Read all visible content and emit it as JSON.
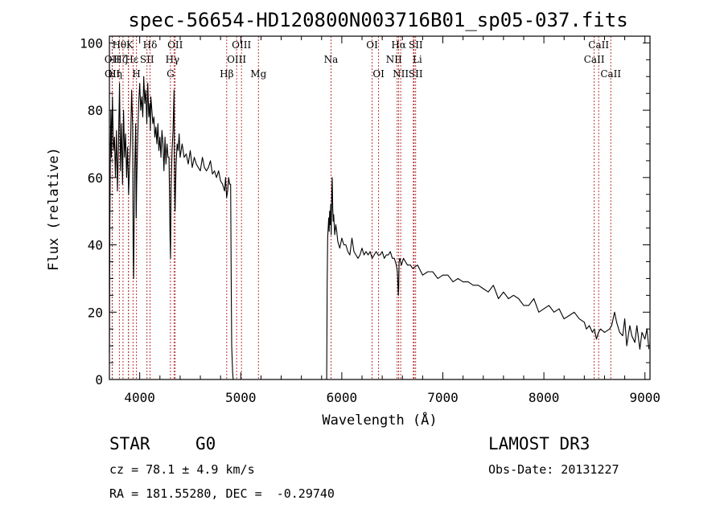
{
  "chart_data": {
    "type": "line",
    "title": "spec-56654-HD120800N003716B01_sp05-037.fits",
    "xlabel": "Wavelength (Å)",
    "ylabel": "Flux (relative)",
    "xlim": [
      3700,
      9050
    ],
    "ylim": [
      0,
      102
    ],
    "xticks": [
      4000,
      5000,
      6000,
      7000,
      8000,
      9000
    ],
    "yticks": [
      0,
      20,
      40,
      60,
      80,
      100
    ],
    "grid": false,
    "series": [
      {
        "color": "#000000",
        "segments": [
          {
            "x": [
              3700,
              3705,
              3710,
              3715,
              3720,
              3725,
              3730,
              3740,
              3750,
              3760,
              3770,
              3780,
              3790,
              3800,
              3810,
              3820,
              3830,
              3840,
              3850,
              3860,
              3870,
              3880,
              3890,
              3900,
              3910,
              3920,
              3930,
              3935,
              3940,
              3950,
              3960,
              3965,
              3970,
              3980,
              3990,
              4000,
              4010,
              4020,
              4030,
              4040,
              4050,
              4060,
              4070,
              4080,
              4090,
              4100,
              4105,
              4110,
              4120,
              4130,
              4140,
              4150,
              4160,
              4170,
              4180,
              4190,
              4200,
              4210,
              4220,
              4230,
              4240,
              4250,
              4260,
              4270,
              4280,
              4290,
              4300,
              4305,
              4310,
              4320,
              4330,
              4340,
              4345,
              4350,
              4360,
              4370,
              4380,
              4390,
              4400,
              4420,
              4440,
              4460,
              4480,
              4500,
              4520,
              4540,
              4560,
              4580,
              4600,
              4620,
              4640,
              4660,
              4680,
              4700,
              4720,
              4740,
              4760,
              4780,
              4800,
              4820,
              4840,
              4850,
              4860,
              4870,
              4880,
              4890,
              4900,
              4905,
              4910,
              4920,
              4925
            ],
            "y": [
              8,
              48,
              70,
              80,
              66,
              75,
              84,
              68,
              72,
              60,
              74,
              56,
              70,
              88,
              62,
              76,
              58,
              80,
              66,
              73,
              60,
              69,
              55,
              64,
              71,
              86,
              75,
              40,
              30,
              62,
              76,
              48,
              58,
              72,
              82,
              88,
              80,
              84,
              78,
              90,
              82,
              86,
              76,
              88,
              78,
              82,
              74,
              84,
              80,
              76,
              78,
              72,
              75,
              70,
              76,
              68,
              72,
              66,
              74,
              70,
              62,
              72,
              64,
              70,
              66,
              66,
              42,
              36,
              56,
              68,
              74,
              86,
              58,
              50,
              64,
              70,
              68,
              73,
              66,
              70,
              66,
              67,
              64,
              68,
              63,
              66,
              64,
              63,
              62,
              66,
              63,
              62,
              63,
              65,
              61,
              62,
              60,
              62,
              59,
              58,
              56,
              60,
              54,
              56,
              60,
              58,
              58,
              30,
              10,
              2,
              0
            ]
          },
          {
            "x": [
              5850,
              5855,
              5860,
              5870,
              5875,
              5880,
              5885,
              5890,
              5895,
              5900,
              5905,
              5910,
              5915,
              5920,
              5930,
              5940,
              5950,
              5960,
              5980,
              6000,
              6020,
              6040,
              6060,
              6080,
              6100,
              6120,
              6140,
              6160,
              6180,
              6200,
              6220,
              6240,
              6260,
              6280,
              6300,
              6320,
              6340,
              6360,
              6380,
              6400,
              6420,
              6440,
              6460,
              6480,
              6500,
              6520,
              6540,
              6550,
              6560,
              6563,
              6567,
              6575,
              6590,
              6610,
              6630,
              6650,
              6680,
              6700,
              6750,
              6800,
              6850,
              6900,
              6950,
              7000,
              7050,
              7100,
              7150,
              7200,
              7250,
              7300,
              7350,
              7400,
              7450,
              7500,
              7550,
              7600,
              7650,
              7700,
              7750,
              7800,
              7850,
              7900,
              7950,
              8000,
              8050,
              8100,
              8150,
              8200,
              8250,
              8300,
              8350,
              8400,
              8420,
              8450,
              8480,
              8500,
              8520,
              8540,
              8560,
              8600,
              8650,
              8670,
              8700,
              8720,
              8750,
              8780,
              8800,
              8820,
              8850,
              8870,
              8900,
              8920,
              8950,
              8970,
              9000,
              9020,
              9040
            ],
            "y": [
              0,
              28,
              42,
              48,
              44,
              50,
              46,
              52,
              43,
              54,
              60,
              51,
              47,
              49,
              43,
              46,
              44,
              41,
              39,
              42,
              40,
              40,
              38,
              37,
              42,
              38,
              37,
              36,
              37,
              39,
              37,
              38,
              37,
              38,
              36,
              37,
              38,
              37,
              37,
              38,
              36,
              37,
              37,
              38,
              36,
              36,
              34,
              32,
              25,
              27,
              35,
              36,
              34,
              36,
              35,
              34,
              34,
              33,
              34,
              31,
              32,
              32,
              30,
              31,
              31,
              29,
              30,
              29,
              29,
              28,
              28,
              27,
              26,
              28,
              24,
              26,
              24,
              25,
              24,
              22,
              22,
              24,
              20,
              21,
              22,
              20,
              21,
              18,
              19,
              20,
              18,
              17,
              15,
              16,
              14,
              15,
              12,
              14,
              15,
              14,
              15,
              16,
              20,
              17,
              14,
              13,
              18,
              10,
              16,
              13,
              11,
              16,
              9,
              14,
              12,
              15,
              9
            ]
          }
        ]
      }
    ],
    "spectral_lines": [
      {
        "name": "Hθ",
        "x": 3798,
        "row": 0,
        "dx": 0
      },
      {
        "name": "K",
        "x": 3934,
        "row": 0,
        "dx": -4
      },
      {
        "name": "Hδ",
        "x": 4102,
        "row": 0,
        "dx": 0
      },
      {
        "name": "OII",
        "x": 4351,
        "row": 0,
        "dx": 0
      },
      {
        "name": "OIII",
        "x": 5007,
        "row": 0,
        "dx": 0
      },
      {
        "name": "OI",
        "x": 6300,
        "row": 0,
        "dx": 0
      },
      {
        "name": "Hα",
        "x": 6563,
        "row": 0,
        "dx": 0
      },
      {
        "name": "SII",
        "x": 6716,
        "row": 0,
        "dx": 2
      },
      {
        "name": "CaII",
        "x": 8542,
        "row": 0,
        "dx": 0
      },
      {
        "name": "OII",
        "x": 3727,
        "row": 1,
        "dx": 0
      },
      {
        "name": "Hζ",
        "x": 3889,
        "row": 1,
        "dx": -10
      },
      {
        "name": "SII",
        "x": 4072,
        "row": 1,
        "dx": 0
      },
      {
        "name": "Hγ",
        "x": 4340,
        "row": 1,
        "dx": -2
      },
      {
        "name": "OIII",
        "x": 4959,
        "row": 1,
        "dx": 0
      },
      {
        "name": "Na",
        "x": 5893,
        "row": 1,
        "dx": 0
      },
      {
        "name": "NII",
        "x": 6548,
        "row": 1,
        "dx": -4
      },
      {
        "name": "Li",
        "x": 6708,
        "row": 1,
        "dx": 5
      },
      {
        "name": "CaII",
        "x": 8498,
        "row": 1,
        "dx": 0
      },
      {
        "name": "OII",
        "x": 3729,
        "row": 2,
        "dx": 0
      },
      {
        "name": "Hη",
        "x": 3835,
        "row": 2,
        "dx": -10
      },
      {
        "name": "H",
        "x": 3968,
        "row": 2,
        "dx": 0
      },
      {
        "name": "G",
        "x": 4304,
        "row": 2,
        "dx": 0
      },
      {
        "name": "Hβ",
        "x": 4861,
        "row": 2,
        "dx": 0
      },
      {
        "name": "Mg",
        "x": 5175,
        "row": 2,
        "dx": 0
      },
      {
        "name": "OI",
        "x": 6364,
        "row": 2,
        "dx": 0
      },
      {
        "name": "NII",
        "x": 6583,
        "row": 2,
        "dx": 0
      },
      {
        "name": "SII",
        "x": 6731,
        "row": 2,
        "dx": 0
      },
      {
        "name": "CaII",
        "x": 8662,
        "row": 2,
        "dx": 0
      },
      {
        "name": "Hε",
        "x": 3889,
        "row": 1,
        "dx": 4
      }
    ],
    "line_color": "#b22222"
  },
  "info": {
    "object_class": "STAR",
    "subclass": "G0",
    "survey": "LAMOST DR3",
    "redshift": "cz = 78.1 ± 4.9 km/s",
    "obs_date": "Obs-Date: 20131227",
    "coords": "RA = 181.55280, DEC =  -0.29740"
  }
}
